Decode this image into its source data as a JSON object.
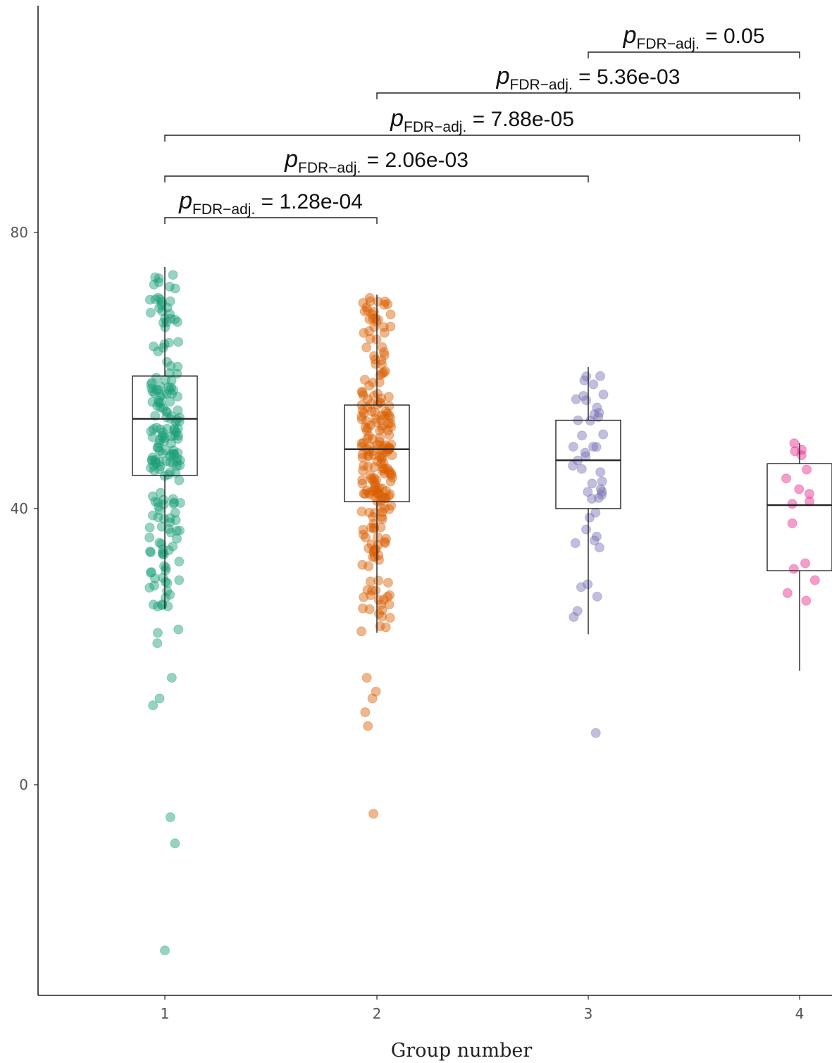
{
  "chart_data": {
    "type": "box",
    "xlabel": "Group number",
    "ylabel": "",
    "ylim": [
      -30,
      112
    ],
    "y_ticks": [
      0,
      40,
      80
    ],
    "categories": [
      "1",
      "2",
      "3",
      "4"
    ],
    "colors": {
      "1": "#1b9e77",
      "2": "#d95f02",
      "3": "#7570b3",
      "4": "#e7298a"
    },
    "boxes": [
      {
        "group": "1",
        "whisker_low": 25.5,
        "q1": 44.8,
        "median": 53.0,
        "q3": 59.2,
        "whisker_high": 75.0
      },
      {
        "group": "2",
        "whisker_low": 22.0,
        "q1": 41.0,
        "median": 48.6,
        "q3": 55.0,
        "whisker_high": 71.0
      },
      {
        "group": "3",
        "whisker_low": 21.8,
        "q1": 40.0,
        "median": 47.0,
        "q3": 52.8,
        "whisker_high": 60.5
      },
      {
        "group": "4",
        "whisker_low": 16.5,
        "q1": 31.0,
        "median": 40.5,
        "q3": 46.5,
        "whisker_high": 49.5
      }
    ],
    "outliers": {
      "1": [
        30.0,
        26.0,
        22.0,
        20.5,
        22.5,
        15.5,
        12.5,
        11.5,
        -4.7,
        -8.5,
        -24.0
      ],
      "2": [
        15.5,
        13.5,
        12.5,
        10.5,
        8.5,
        -4.2
      ],
      "3": [
        7.5
      ],
      "4": []
    },
    "comparisons": [
      {
        "groups": [
          "1",
          "2"
        ],
        "p_symbol": "p",
        "p_subscript": "FDR−adj.",
        "p_value": "1.28e-04"
      },
      {
        "groups": [
          "1",
          "3"
        ],
        "p_symbol": "p",
        "p_subscript": "FDR−adj.",
        "p_value": "2.06e-03"
      },
      {
        "groups": [
          "1",
          "4"
        ],
        "p_symbol": "p",
        "p_subscript": "FDR−adj.",
        "p_value": "7.88e-05"
      },
      {
        "groups": [
          "2",
          "4"
        ],
        "p_symbol": "p",
        "p_subscript": "FDR−adj.",
        "p_value": "5.36e-03"
      },
      {
        "groups": [
          "3",
          "4"
        ],
        "p_symbol": "p",
        "p_subscript": "FDR−adj.",
        "p_value": "0.05"
      }
    ]
  }
}
